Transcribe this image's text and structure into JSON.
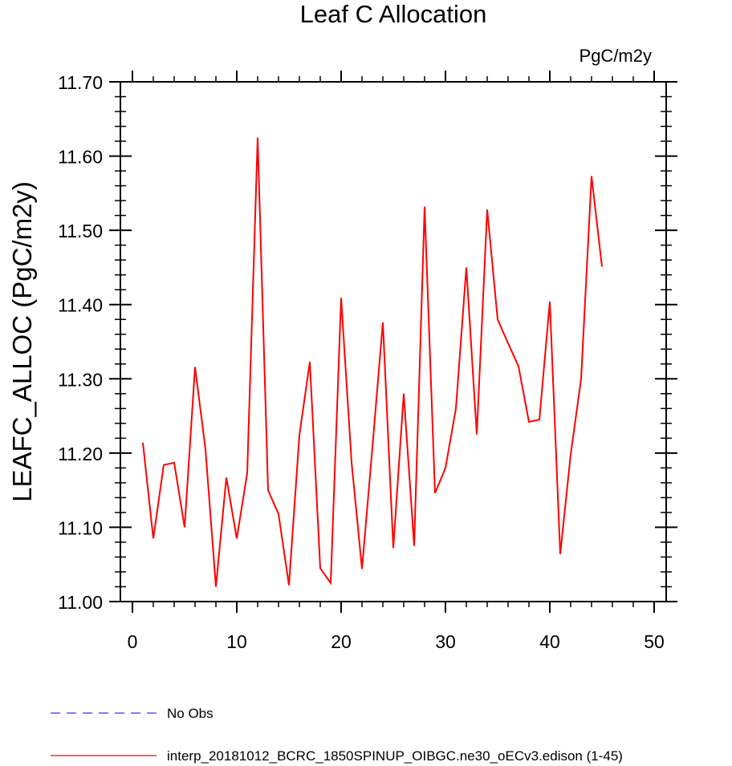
{
  "chart_data": {
    "type": "line",
    "title": "Leaf C Allocation",
    "units_label": "PgC/m2y",
    "ylabel": "LEAFC_ALLOC  (PgC/m2y)",
    "xlabel": "",
    "xlim": [
      0,
      50
    ],
    "ylim": [
      11.0,
      11.7
    ],
    "x_ticks": [
      0,
      10,
      20,
      30,
      40,
      50
    ],
    "x_tick_labels": [
      "0",
      "10",
      "20",
      "30",
      "40",
      "50"
    ],
    "y_ticks": [
      11.0,
      11.1,
      11.2,
      11.3,
      11.4,
      11.5,
      11.6,
      11.7
    ],
    "y_tick_labels": [
      "11.00",
      "11.10",
      "11.20",
      "11.30",
      "11.40",
      "11.50",
      "11.60",
      "11.70"
    ],
    "grid": false,
    "legend_position": "bottom-left",
    "series": [
      {
        "name": "No Obs",
        "color": "#3333ff",
        "line_style": "dashed",
        "x": [],
        "y": []
      },
      {
        "name": "interp_20181012_BCRC_1850SPINUP_OIBGC.ne30_oECv3.edison (1-45)",
        "color": "#ff0000",
        "line_style": "solid",
        "x": [
          1,
          2,
          3,
          4,
          5,
          6,
          7,
          8,
          9,
          10,
          11,
          12,
          13,
          14,
          15,
          16,
          17,
          18,
          19,
          20,
          21,
          22,
          23,
          24,
          25,
          26,
          27,
          28,
          29,
          30,
          31,
          32,
          33,
          34,
          35,
          36,
          37,
          38,
          39,
          40,
          41,
          42,
          43,
          44,
          45
        ],
        "y": [
          11.214,
          11.085,
          11.184,
          11.187,
          11.1,
          11.316,
          11.205,
          11.02,
          11.167,
          11.085,
          11.173,
          11.625,
          11.15,
          11.118,
          11.022,
          11.224,
          11.323,
          11.045,
          11.025,
          11.409,
          11.188,
          11.044,
          11.208,
          11.376,
          11.072,
          11.28,
          11.075,
          11.532,
          11.146,
          11.18,
          11.26,
          11.45,
          11.225,
          11.528,
          11.38,
          11.348,
          11.317,
          11.242,
          11.245,
          11.404,
          11.064,
          11.198,
          11.3,
          11.573,
          11.451
        ]
      }
    ]
  }
}
